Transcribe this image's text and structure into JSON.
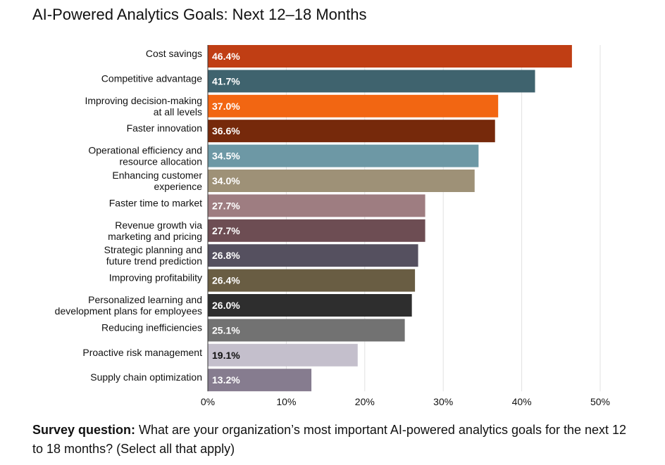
{
  "chart_data": {
    "type": "bar",
    "orientation": "horizontal",
    "title": "AI-Powered Analytics Goals: Next 12–18 Months",
    "categories": [
      [
        "Cost savings"
      ],
      [
        "Competitive advantage"
      ],
      [
        "Improving decision-making",
        "at all levels"
      ],
      [
        "Faster innovation"
      ],
      [
        "Operational efficiency and",
        "resource allocation"
      ],
      [
        "Enhancing customer",
        "experience"
      ],
      [
        "Faster time to market"
      ],
      [
        "Revenue growth via",
        "marketing and pricing"
      ],
      [
        "Strategic planning and",
        "future trend prediction"
      ],
      [
        "Improving profitability"
      ],
      [
        "Personalized learning and",
        "development plans for employees"
      ],
      [
        "Reducing inefficiencies"
      ],
      [
        "Proactive risk management"
      ],
      [
        "Supply chain optimization"
      ]
    ],
    "values": [
      46.4,
      41.7,
      37.0,
      36.6,
      34.5,
      34.0,
      27.7,
      27.7,
      26.8,
      26.4,
      26.0,
      25.1,
      19.1,
      13.2
    ],
    "data_labels": [
      "46.4%",
      "41.7%",
      "37.0%",
      "36.6%",
      "34.5%",
      "34.0%",
      "27.7%",
      "27.7%",
      "26.8%",
      "26.4%",
      "26.0%",
      "25.1%",
      "19.1%",
      "13.2%"
    ],
    "colors": [
      "#c03e14",
      "#3f636e",
      "#f26612",
      "#76290b",
      "#6d98a5",
      "#9e9177",
      "#9e7d81",
      "#6d4d53",
      "#55505f",
      "#695d43",
      "#2e2e2e",
      "#727272",
      "#c4bfcc",
      "#867c8f"
    ],
    "label_colors": [
      "#ffffff",
      "#ffffff",
      "#ffffff",
      "#ffffff",
      "#ffffff",
      "#ffffff",
      "#ffffff",
      "#ffffff",
      "#ffffff",
      "#ffffff",
      "#ffffff",
      "#ffffff",
      "#111111",
      "#ffffff"
    ],
    "xlim": [
      0,
      50
    ],
    "xticks": [
      0,
      10,
      20,
      30,
      40,
      50
    ],
    "xtick_labels": [
      "0%",
      "10%",
      "20%",
      "30%",
      "40%",
      "50%"
    ],
    "grid": true,
    "xlabel": "",
    "ylabel": ""
  },
  "footer": {
    "bold": "Survey question:",
    "text": " What are your organization’s most important AI-powered analytics goals for the next 12 to 18 months? (Select all that apply)"
  }
}
